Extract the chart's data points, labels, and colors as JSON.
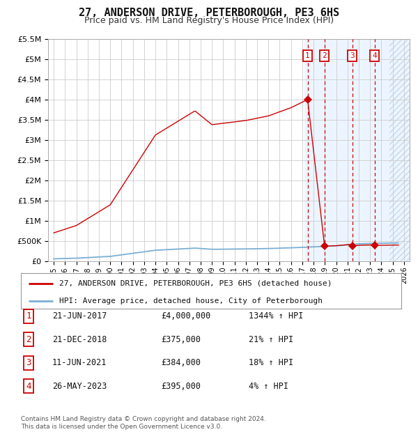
{
  "title": "27, ANDERSON DRIVE, PETERBOROUGH, PE3 6HS",
  "subtitle": "Price paid vs. HM Land Registry's House Price Index (HPI)",
  "legend_line1": "27, ANDERSON DRIVE, PETERBOROUGH, PE3 6HS (detached house)",
  "legend_line2": "HPI: Average price, detached house, City of Peterborough",
  "footer": "Contains HM Land Registry data © Crown copyright and database right 2024.\nThis data is licensed under the Open Government Licence v3.0.",
  "transactions": [
    {
      "num": 1,
      "date": "21-JUN-2017",
      "price": 4000000,
      "pct": "1344%",
      "dir": "↑",
      "x_year": 2017.47
    },
    {
      "num": 2,
      "date": "21-DEC-2018",
      "price": 375000,
      "pct": "21%",
      "dir": "↑",
      "x_year": 2018.97
    },
    {
      "num": 3,
      "date": "11-JUN-2021",
      "price": 384000,
      "pct": "18%",
      "dir": "↑",
      "x_year": 2021.44
    },
    {
      "num": 4,
      "date": "26-MAY-2023",
      "price": 395000,
      "pct": "4%",
      "dir": "↑",
      "x_year": 2023.4
    }
  ],
  "hpi_color": "#7bafd4",
  "price_color": "#cc0000",
  "background_color": "#ffffff",
  "grid_color": "#cccccc",
  "shade_color": "#ddeeff",
  "ylim": [
    0,
    5500000
  ],
  "xlim": [
    1994.5,
    2026.5
  ],
  "yticks": [
    0,
    500000,
    1000000,
    1500000,
    2000000,
    2500000,
    3000000,
    3500000,
    4000000,
    4500000,
    5000000,
    5500000
  ],
  "ytick_labels": [
    "£0",
    "£500K",
    "£1M",
    "£1.5M",
    "£2M",
    "£2.5M",
    "£3M",
    "£3.5M",
    "£4M",
    "£4.5M",
    "£5M",
    "£5.5M"
  ],
  "xtick_years": [
    1995,
    1996,
    1997,
    1998,
    1999,
    2000,
    2001,
    2002,
    2003,
    2004,
    2005,
    2006,
    2007,
    2008,
    2009,
    2010,
    2011,
    2012,
    2013,
    2014,
    2015,
    2016,
    2017,
    2018,
    2019,
    2020,
    2021,
    2022,
    2023,
    2024,
    2025,
    2026
  ],
  "title_fontsize": 11,
  "subtitle_fontsize": 9,
  "tick_fontsize": 8,
  "legend_fontsize": 8,
  "table_fontsize": 8.5,
  "footer_fontsize": 6.5
}
